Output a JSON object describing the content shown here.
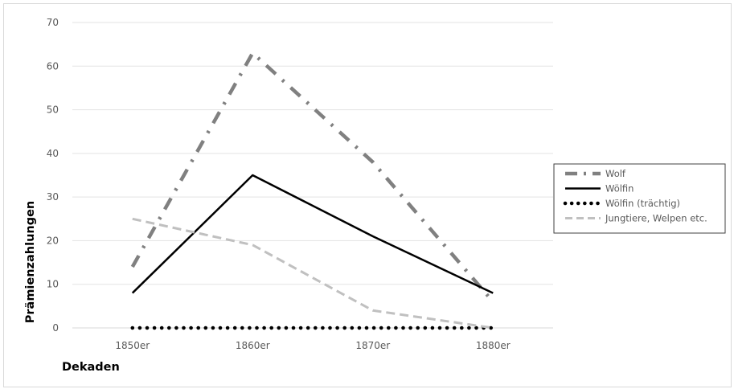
{
  "chart_data": {
    "type": "line",
    "categories": [
      "1850er",
      "1860er",
      "1870er",
      "1880er"
    ],
    "xlabel": "Dekaden",
    "ylabel": "Prämienzahlungen",
    "ylim": [
      0,
      70
    ],
    "yticks": [
      0,
      10,
      20,
      30,
      40,
      50,
      60,
      70
    ],
    "grid": true,
    "legend_position": "right",
    "series": [
      {
        "name": "Wolf",
        "values": [
          14,
          63,
          38,
          6
        ],
        "color": "#808080",
        "style": "dash-dot"
      },
      {
        "name": "Wölfin",
        "values": [
          8,
          35,
          21,
          8
        ],
        "color": "#000000",
        "style": "solid"
      },
      {
        "name": "Wölfin (trächtig)",
        "values": [
          0,
          0,
          0,
          0
        ],
        "color": "#000000",
        "style": "dotted"
      },
      {
        "name": "Jungtiere, Welpen etc.",
        "values": [
          25,
          19,
          4,
          0
        ],
        "color": "#c0c0c0",
        "style": "dashed"
      }
    ]
  }
}
